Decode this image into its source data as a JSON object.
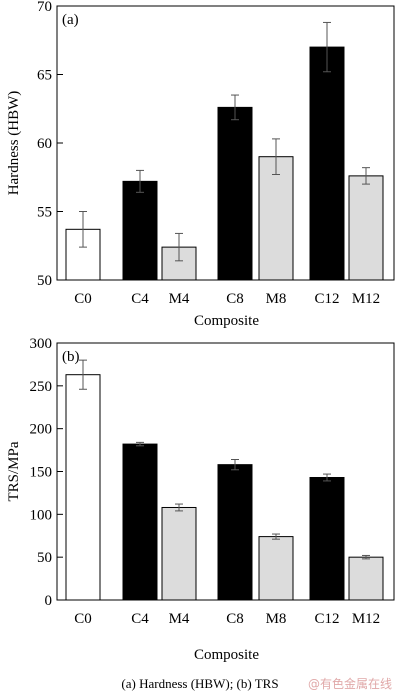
{
  "chart_data": [
    {
      "type": "bar",
      "panel_label": "(a)",
      "categories": [
        "C0",
        "C4",
        "M4",
        "C8",
        "M8",
        "C12",
        "M12"
      ],
      "values": [
        53.7,
        57.2,
        52.4,
        62.6,
        59.0,
        67.0,
        57.6
      ],
      "errors": [
        1.3,
        0.8,
        1.0,
        0.9,
        1.3,
        1.8,
        0.6
      ],
      "fills": [
        "#ffffff",
        "#000000",
        "#dcdcdc",
        "#000000",
        "#dcdcdc",
        "#000000",
        "#dcdcdc"
      ],
      "xlabel": "Composite",
      "ylabel": "Hardness (HBW)",
      "ylim": [
        50,
        70
      ],
      "yticks": [
        50,
        55,
        60,
        65,
        70
      ],
      "grid": false
    },
    {
      "type": "bar",
      "panel_label": "(b)",
      "categories": [
        "C0",
        "C4",
        "M4",
        "C8",
        "M8",
        "C12",
        "M12"
      ],
      "values": [
        263,
        182,
        108,
        158,
        74,
        143,
        50
      ],
      "errors": [
        17,
        2,
        4,
        6,
        3,
        4,
        2
      ],
      "fills": [
        "#ffffff",
        "#000000",
        "#dcdcdc",
        "#000000",
        "#dcdcdc",
        "#000000",
        "#dcdcdc"
      ],
      "xlabel": "Composite",
      "ylabel": "TRS/MPa",
      "ylim": [
        0,
        300
      ],
      "yticks": [
        0,
        50,
        100,
        150,
        200,
        250,
        300
      ],
      "grid": false
    }
  ],
  "caption": "(a) Hardness (HBW); (b) TRS",
  "watermark": "@有色金属在线"
}
